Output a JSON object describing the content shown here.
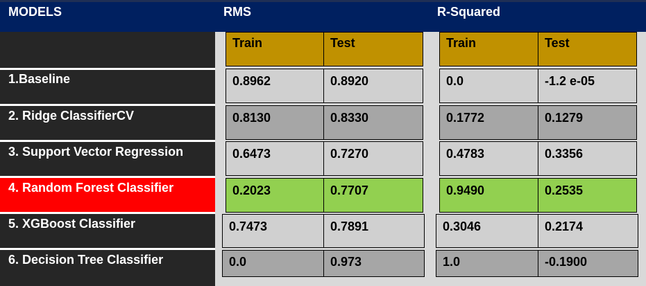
{
  "header": {
    "models": "MODELS",
    "rms": "RMS",
    "r_squared": "R-Squared"
  },
  "subheader": {
    "train": "Train",
    "test": "Test"
  },
  "rows": [
    {
      "model": "1.Baseline",
      "rms_train": "0.8962",
      "rms_test": "0.8920",
      "r2_train": "0.0",
      "r2_test": "-1.2 e-05"
    },
    {
      "model": "2. Ridge ClassifierCV",
      "rms_train": "0.8130",
      "rms_test": "0.8330",
      "r2_train": "0.1772",
      "r2_test": "0.1279"
    },
    {
      "model": "3. Support Vector Regression",
      "rms_train": "0.6473",
      "rms_test": "0.7270",
      "r2_train": "0.4783",
      "r2_test": "0.3356"
    },
    {
      "model": "4. Random Forest Classifier",
      "rms_train": "0.2023",
      "rms_test": "0.7707",
      "r2_train": "0.9490",
      "r2_test": "0.2535"
    },
    {
      "model": "5. XGBoost Classifier",
      "rms_train": "0.7473",
      "rms_test": "0.7891",
      "r2_train": "0.3046",
      "r2_test": "0.2174"
    },
    {
      "model": "6. Decision Tree Classifier",
      "rms_train": "0.0",
      "rms_test": "0.973",
      "r2_train": "1.0",
      "r2_test": "-0.1900"
    }
  ],
  "colors": {
    "header": "#002060",
    "subheader": "#c09100",
    "highlight_row": "#ff0000",
    "highlight_cells": "#92d050"
  }
}
